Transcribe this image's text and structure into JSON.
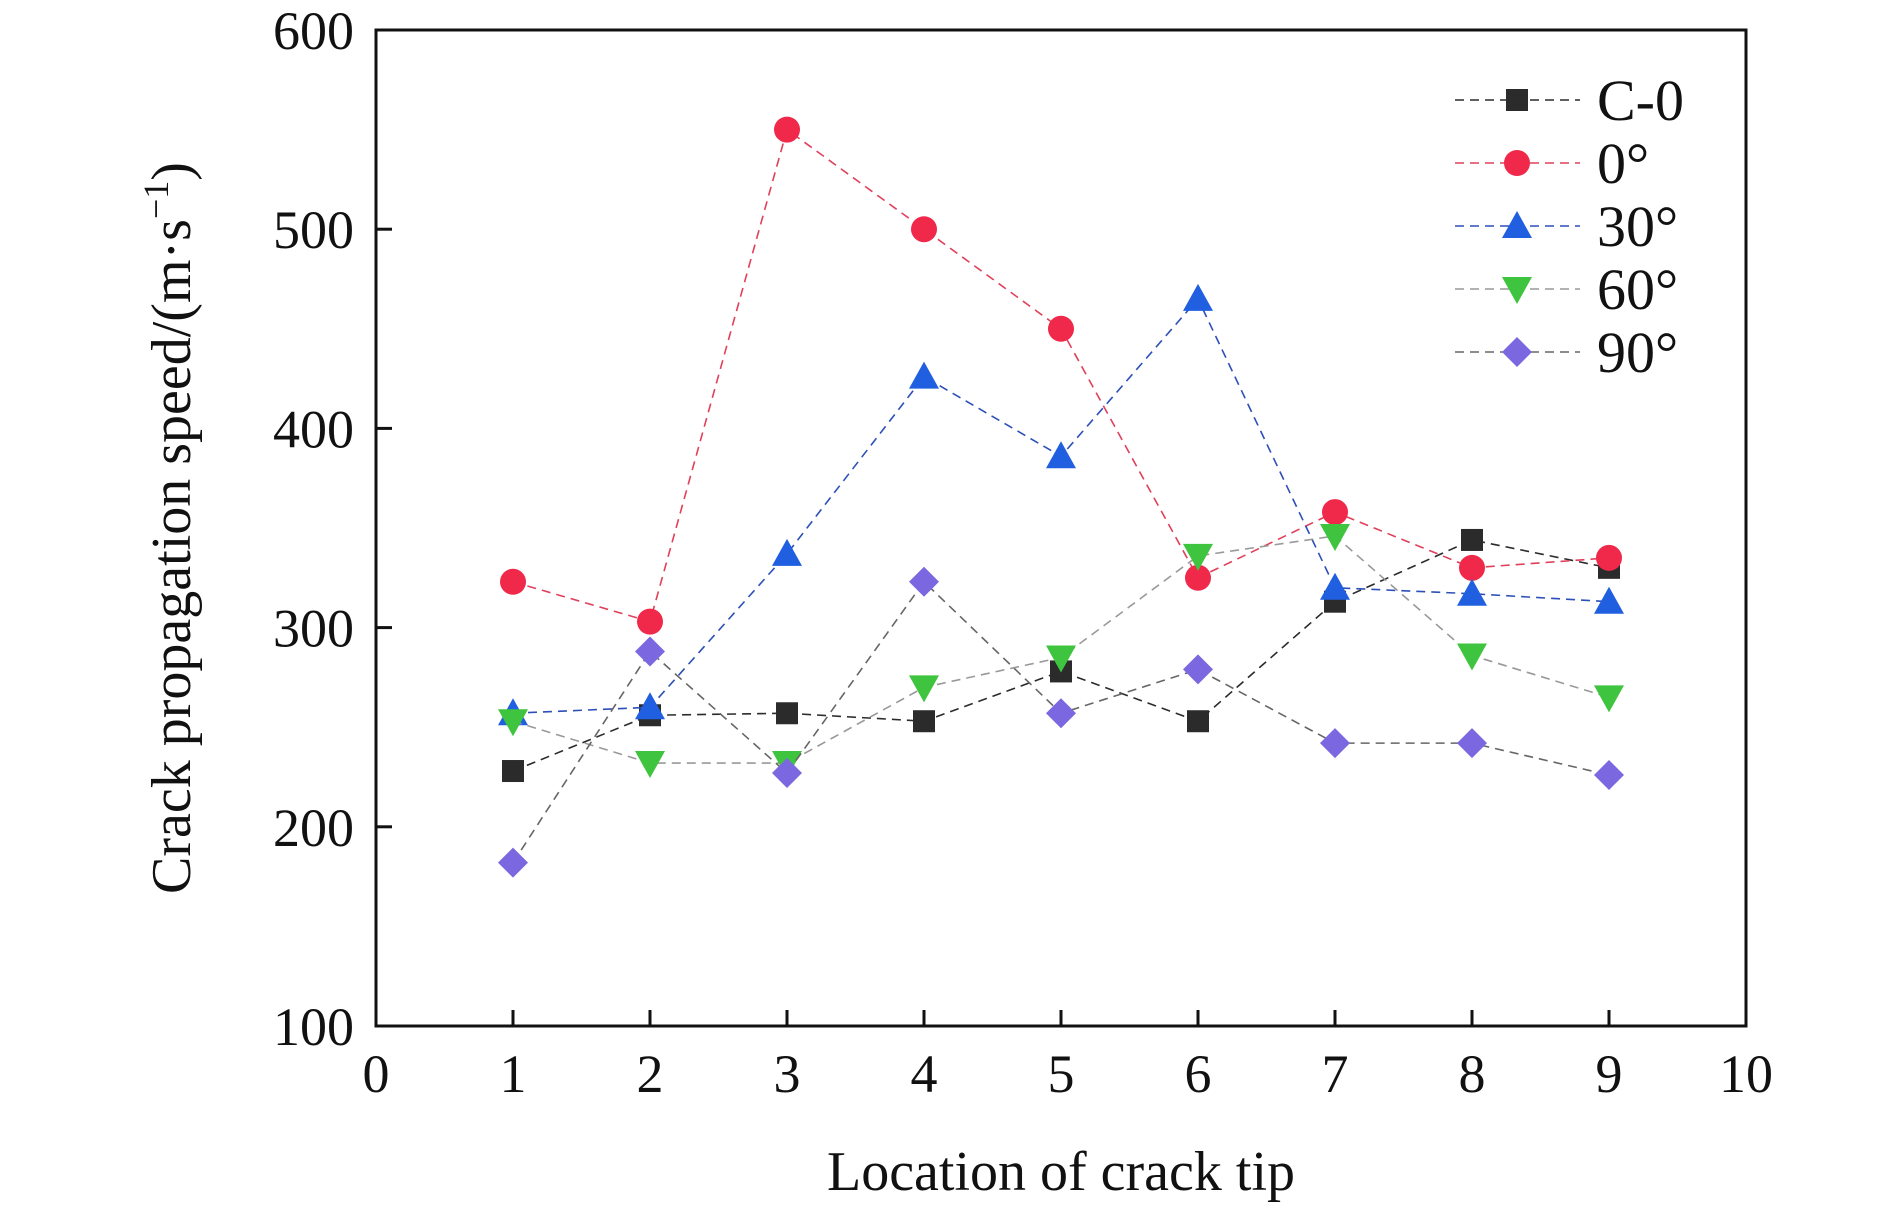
{
  "chart_data": {
    "type": "line",
    "xlabel": "Location of crack tip",
    "ylabel_main": "Crack propagation speed/(m·s",
    "ylabel_sup": "−1",
    "ylabel_close": ")",
    "ylabel": "Crack propagation speed/(m·s−1)",
    "xlim": [
      0,
      10
    ],
    "ylim": [
      100,
      600
    ],
    "xticks": [
      0,
      1,
      2,
      3,
      4,
      5,
      6,
      7,
      8,
      9,
      10
    ],
    "yticks": [
      100,
      200,
      300,
      400,
      500,
      600
    ],
    "grid": false,
    "legend_position": "top-right",
    "line_style": "dashed",
    "x": [
      1,
      2,
      3,
      4,
      5,
      6,
      7,
      8,
      9
    ],
    "series": [
      {
        "name": "C-0",
        "marker": "square",
        "color": "#2b2b2b",
        "line_color": "#2b2b2b",
        "values": [
          228,
          256,
          257,
          253,
          278,
          253,
          313,
          344,
          330
        ]
      },
      {
        "name": "0°",
        "marker": "circle",
        "color": "#f0284a",
        "line_color": "#e0405a",
        "values": [
          323,
          303,
          550,
          500,
          450,
          325,
          358,
          330,
          335
        ]
      },
      {
        "name": "30°",
        "marker": "triangle-up",
        "color": "#1f5fe0",
        "line_color": "#2d4fb8",
        "values": [
          257,
          260,
          337,
          426,
          386,
          465,
          320,
          317,
          313
        ]
      },
      {
        "name": "60°",
        "marker": "triangle-down",
        "color": "#3ec43e",
        "line_color": "#999999",
        "values": [
          253,
          232,
          232,
          270,
          285,
          336,
          346,
          286,
          265
        ]
      },
      {
        "name": "90°",
        "marker": "diamond",
        "color": "#7b68e0",
        "line_color": "#666666",
        "values": [
          182,
          288,
          227,
          323,
          257,
          279,
          242,
          242,
          226
        ]
      }
    ]
  }
}
